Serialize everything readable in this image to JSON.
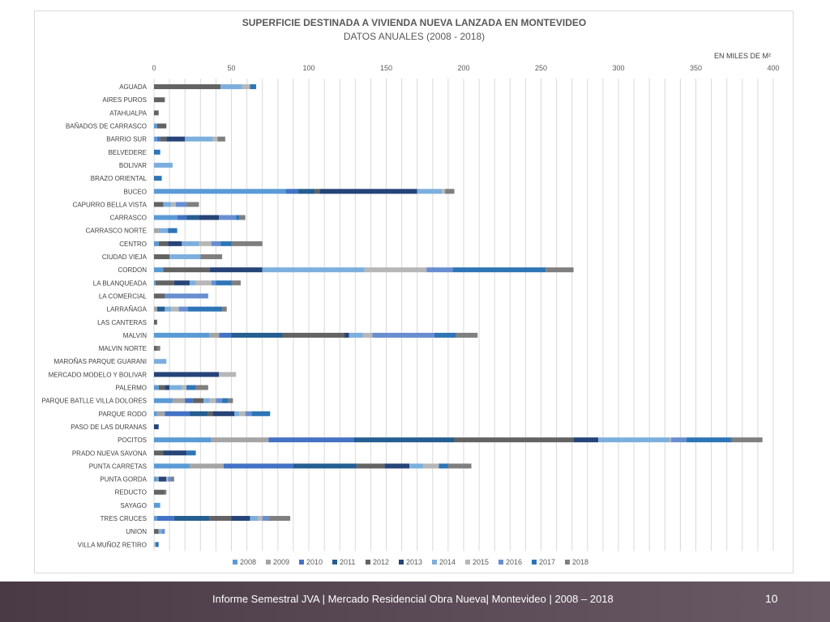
{
  "chart_data": {
    "type": "bar",
    "orientation": "horizontal",
    "stacked": true,
    "title": "SUPERFICIE DESTINADA A VIVIENDA NUEVA LANZADA EN MONTEVIDEO",
    "subtitle": "DATOS ANUALES (2008 - 2018)",
    "unit_label": "EN MILES DE M²",
    "xlim": [
      0,
      400
    ],
    "x_ticks": [
      0,
      50,
      100,
      150,
      200,
      250,
      300,
      350,
      400
    ],
    "grid": "vertical minor every 10",
    "legend_position": "bottom",
    "categories": [
      "AGUADA",
      "AIRES PUROS",
      "ATAHUALPA",
      "BAÑADOS DE CARRASCO",
      "BARRIO SUR",
      "BELVEDERE",
      "BOLIVAR",
      "BRAZO ORIENTAL",
      "BUCEO",
      "CAPURRO BELLA VISTA",
      "CARRASCO",
      "CARRASCO NORTE",
      "CENTRO",
      "CIUDAD VIEJA",
      "CORDON",
      "LA BLANQUEADA",
      "LA COMERCIAL",
      "LARRAÑAGA",
      "LAS CANTERAS",
      "MALVIN",
      "MALVIN NORTE",
      "MAROÑAS PARQUE GUARANI",
      "MERCADO MODELO Y BOLIVAR",
      "PALERMO",
      "PARQUE BATLLE VILLA DOLORES",
      "PARQUE RODO",
      "PASO DE LAS DURANAS",
      "POCITOS",
      "PRADO NUEVA SAVONA",
      "PUNTA CARRETAS",
      "PUNTA GORDA",
      "REDUCTO",
      "SAYAGO",
      "TRES CRUCES",
      "UNION",
      "VILLA MUÑOZ RETIRO"
    ],
    "series": [
      {
        "name": "2008",
        "color": "#5b9bd5",
        "values": [
          0,
          0,
          0,
          2,
          2,
          0,
          0,
          0,
          85,
          0,
          15,
          0,
          3,
          0,
          6,
          1,
          0,
          0,
          0,
          36,
          0,
          0,
          0,
          3,
          12,
          2,
          0,
          37,
          0,
          23,
          2,
          0,
          4,
          2,
          0,
          0
        ]
      },
      {
        "name": "2009",
        "color": "#a5a5a5",
        "values": [
          0,
          0,
          0,
          0,
          0,
          0,
          0,
          0,
          0,
          0,
          0,
          3,
          0,
          0,
          0,
          0,
          0,
          2,
          0,
          6,
          0,
          0,
          0,
          0,
          8,
          5,
          0,
          37,
          0,
          22,
          1,
          0,
          0,
          0,
          0,
          0
        ]
      },
      {
        "name": "2010",
        "color": "#4472c4",
        "values": [
          0,
          0,
          0,
          0,
          2,
          0,
          0,
          0,
          8,
          0,
          6,
          0,
          0,
          0,
          0,
          0,
          0,
          0,
          0,
          8,
          0,
          0,
          0,
          0,
          5,
          16,
          0,
          55,
          0,
          45,
          0,
          0,
          0,
          11,
          0,
          0
        ]
      },
      {
        "name": "2011",
        "color": "#255e91",
        "values": [
          0,
          0,
          0,
          0,
          0,
          0,
          0,
          0,
          11,
          0,
          8,
          0,
          0,
          0,
          0,
          0,
          0,
          5,
          0,
          33,
          0,
          0,
          0,
          0,
          0,
          12,
          0,
          65,
          0,
          41,
          0,
          0,
          0,
          23,
          0,
          0
        ]
      },
      {
        "name": "2012",
        "color": "#636363",
        "values": [
          43,
          7,
          3,
          6,
          4,
          0,
          0,
          0,
          3,
          6,
          0,
          0,
          6,
          10,
          30,
          12,
          7,
          0,
          2,
          40,
          2,
          0,
          0,
          4,
          7,
          3,
          0,
          77,
          6,
          18,
          0,
          7,
          0,
          14,
          3,
          0
        ]
      },
      {
        "name": "2013",
        "color": "#264478",
        "values": [
          0,
          0,
          0,
          0,
          12,
          0,
          0,
          0,
          63,
          0,
          13,
          0,
          9,
          0,
          34,
          10,
          0,
          0,
          0,
          3,
          0,
          0,
          42,
          3,
          0,
          14,
          3,
          16,
          15,
          16,
          5,
          0,
          0,
          12,
          0,
          0
        ]
      },
      {
        "name": "2014",
        "color": "#7cafdd",
        "values": [
          14,
          0,
          0,
          0,
          18,
          0,
          12,
          0,
          16,
          5,
          0,
          6,
          11,
          20,
          66,
          4,
          0,
          4,
          0,
          9,
          0,
          8,
          0,
          8,
          4,
          3,
          0,
          46,
          0,
          9,
          0,
          0,
          0,
          5,
          2,
          0
        ]
      },
      {
        "name": "2015",
        "color": "#b7b7b7",
        "values": [
          5,
          0,
          0,
          0,
          3,
          0,
          0,
          0,
          2,
          3,
          0,
          0,
          8,
          0,
          40,
          10,
          0,
          5,
          0,
          6,
          0,
          0,
          11,
          3,
          4,
          4,
          0,
          1,
          0,
          10,
          1,
          0,
          0,
          3,
          0,
          1
        ]
      },
      {
        "name": "2016",
        "color": "#698ed0",
        "values": [
          0,
          0,
          0,
          0,
          0,
          0,
          0,
          0,
          0,
          7,
          11,
          0,
          6,
          0,
          17,
          3,
          28,
          6,
          0,
          40,
          0,
          0,
          0,
          0,
          4,
          4,
          0,
          10,
          0,
          0,
          2,
          0,
          0,
          4,
          2,
          0
        ]
      },
      {
        "name": "2017",
        "color": "#2e75b6",
        "values": [
          4,
          0,
          0,
          0,
          0,
          4,
          0,
          5,
          0,
          0,
          2,
          6,
          7,
          0,
          60,
          10,
          0,
          22,
          0,
          14,
          0,
          0,
          0,
          6,
          4,
          12,
          0,
          29,
          6,
          6,
          0,
          0,
          0,
          0,
          0,
          2
        ]
      },
      {
        "name": "2018",
        "color": "#7f7f7f",
        "values": [
          0,
          0,
          0,
          0,
          5,
          0,
          0,
          0,
          6,
          8,
          4,
          0,
          20,
          14,
          18,
          6,
          0,
          3,
          0,
          14,
          2,
          0,
          0,
          8,
          3,
          0,
          0,
          20,
          0,
          15,
          2,
          1,
          0,
          14,
          0,
          0
        ]
      }
    ]
  },
  "footer": {
    "text": "Informe Semestral JVA | Mercado Residencial Obra Nueva| Montevideo | 2008 – 2018",
    "page": "10"
  }
}
